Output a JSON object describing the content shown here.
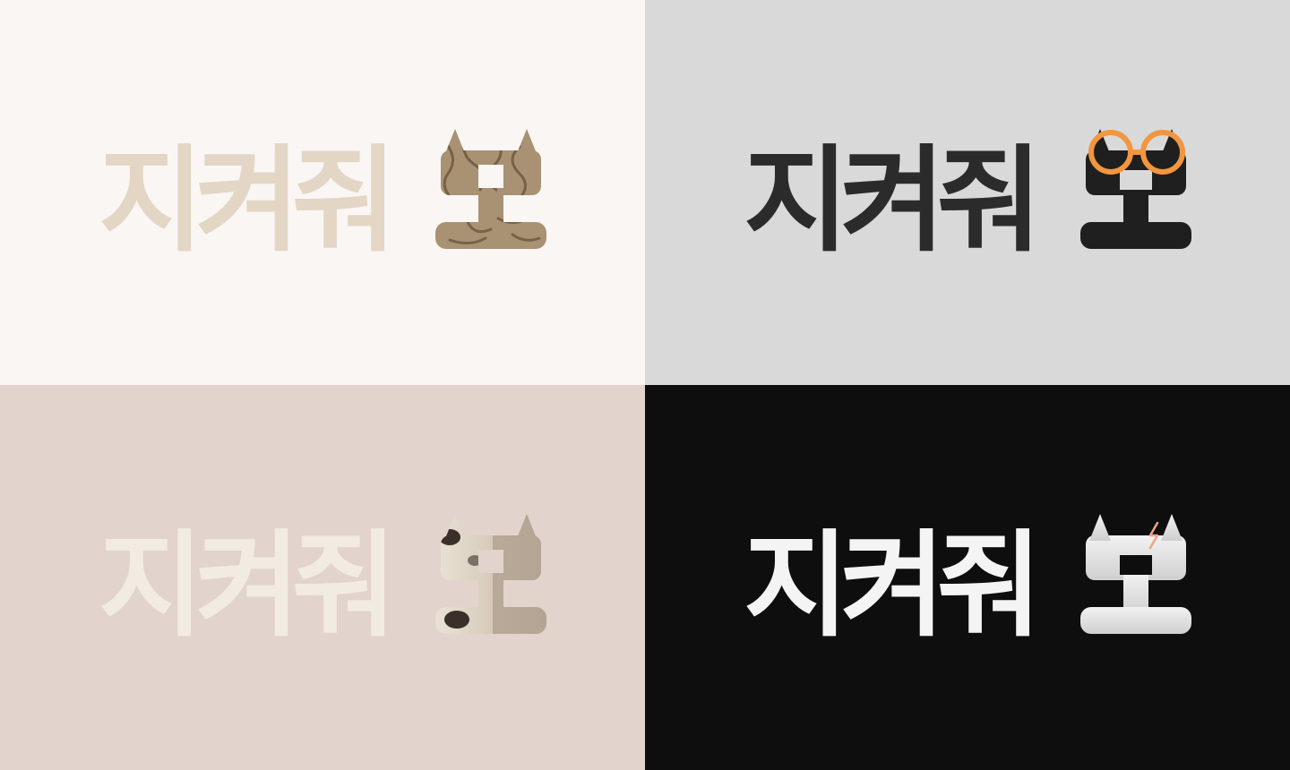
{
  "panels": [
    {
      "id": "cream",
      "background": "#faf6f4",
      "logo_text": "지켜줘",
      "cat_glyph": "묘",
      "text_color": "#e3d6c5",
      "cat_color": "#a99173",
      "cat_pattern": "wood-grain"
    },
    {
      "id": "grey",
      "background": "#d9d9d9",
      "logo_text": "지켜줘",
      "cat_glyph": "묘",
      "text_color": "#2b2b2b",
      "cat_color": "#1f1f1f",
      "cat_accessory": "glasses",
      "accent": "#f2963f"
    },
    {
      "id": "blush",
      "background": "#e2d3cc",
      "logo_text": "지켜줘",
      "cat_glyph": "묘",
      "text_color": "#f2ebe2",
      "cat_color": "#b4a593",
      "cat_pattern": "calico"
    },
    {
      "id": "black",
      "background": "#0e0e0e",
      "logo_text": "지켜줘",
      "cat_glyph": "묘",
      "text_color": "#f4f4f4",
      "cat_color": "#e3e3e3",
      "cat_accessory": "lightning-scar",
      "accent": "#f0a38a"
    }
  ]
}
